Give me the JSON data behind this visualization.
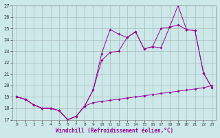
{
  "xlabel": "Windchill (Refroidissement éolien,°C)",
  "background_color": "#cce8e8",
  "line_color": "#990099",
  "grid_color": "#aabbbb",
  "xlim": [
    -0.5,
    23.5
  ],
  "ylim": [
    17,
    27
  ],
  "xticks": [
    0,
    1,
    2,
    3,
    4,
    5,
    6,
    7,
    8,
    9,
    10,
    11,
    12,
    13,
    14,
    15,
    16,
    17,
    18,
    19,
    20,
    21,
    22,
    23
  ],
  "yticks": [
    17,
    18,
    19,
    20,
    21,
    22,
    23,
    24,
    25,
    26,
    27
  ],
  "line1_x": [
    0,
    1,
    2,
    3,
    4,
    5,
    6,
    7,
    8,
    9,
    10,
    11,
    12,
    13,
    14,
    15,
    16,
    17,
    18,
    19,
    20,
    21,
    22,
    23
  ],
  "line1_y": [
    19.0,
    18.8,
    18.3,
    18.0,
    18.0,
    17.8,
    17.0,
    17.3,
    18.2,
    18.5,
    18.6,
    18.7,
    18.8,
    18.9,
    19.0,
    19.1,
    19.2,
    19.3,
    19.4,
    19.5,
    19.6,
    19.7,
    19.8,
    20.0
  ],
  "line2_x": [
    0,
    1,
    2,
    3,
    4,
    5,
    6,
    7,
    8,
    9,
    10,
    11,
    12,
    13,
    14,
    15,
    16,
    17,
    18,
    19,
    20,
    21,
    22,
    23
  ],
  "line2_y": [
    19.0,
    18.8,
    18.3,
    18.0,
    18.0,
    17.8,
    17.0,
    17.3,
    18.2,
    19.6,
    22.8,
    24.9,
    24.5,
    24.2,
    24.7,
    23.2,
    23.4,
    23.3,
    25.1,
    27.0,
    24.9,
    24.8,
    21.1,
    19.8
  ],
  "line3_x": [
    0,
    1,
    2,
    3,
    4,
    5,
    6,
    7,
    8,
    9,
    10,
    11,
    12,
    13,
    14,
    15,
    16,
    17,
    18,
    19,
    20,
    21,
    22,
    23
  ],
  "line3_y": [
    19.0,
    18.8,
    18.3,
    18.0,
    18.0,
    17.8,
    17.0,
    17.3,
    18.2,
    19.6,
    22.2,
    22.9,
    23.0,
    24.2,
    24.7,
    23.2,
    23.4,
    25.0,
    25.1,
    25.3,
    24.9,
    24.8,
    21.1,
    19.8
  ]
}
